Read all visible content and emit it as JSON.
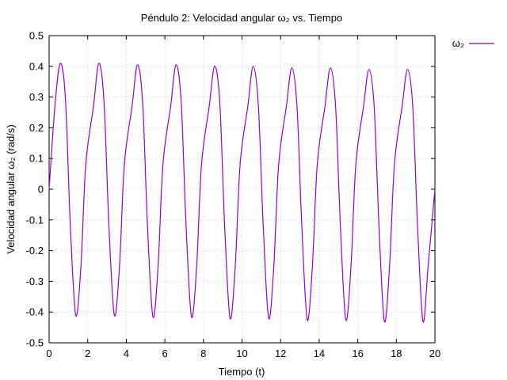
{
  "chart_data": {
    "type": "line",
    "title": "Péndulo 2: Velocidad angular ω₂ vs. Tiempo",
    "xlabel": "Tiempo (t)",
    "ylabel": "Velocidad angular ω₂ (rad/s)",
    "xlim": [
      0,
      20
    ],
    "ylim": [
      -0.5,
      0.5
    ],
    "grid": true,
    "legend_position": "top-right (outside plot)",
    "x_ticks": [
      "0",
      "2",
      "4",
      "6",
      "8",
      "10",
      "12",
      "14",
      "16",
      "18",
      "20"
    ],
    "y_ticks": [
      "-0.5",
      "-0.4",
      "-0.3",
      "-0.2",
      "-0.1",
      "0",
      "0.1",
      "0.2",
      "0.3",
      "0.4",
      "0.5"
    ],
    "series": [
      {
        "name": "ω₂",
        "color": "#9400d3",
        "x": [
          0,
          0.3,
          0.58,
          0.85,
          1.1,
          1.38,
          1.65,
          1.9,
          2.3,
          2.58,
          2.85,
          3.1,
          3.38,
          3.65,
          3.9,
          4.3,
          4.58,
          4.85,
          5.1,
          5.38,
          5.65,
          5.9,
          6.3,
          6.58,
          6.85,
          7.1,
          7.38,
          7.65,
          7.9,
          8.3,
          8.58,
          8.85,
          9.1,
          9.38,
          9.65,
          9.9,
          10.3,
          10.58,
          10.85,
          11.1,
          11.38,
          11.65,
          11.9,
          12.3,
          12.58,
          12.85,
          13.1,
          13.38,
          13.65,
          13.9,
          14.3,
          14.58,
          14.85,
          15.1,
          15.38,
          15.65,
          15.9,
          16.3,
          16.58,
          16.85,
          17.1,
          17.38,
          17.65,
          17.9,
          18.3,
          18.58,
          18.85,
          19.1,
          19.38,
          19.65,
          20.0
        ],
        "y": [
          0,
          0.27,
          0.41,
          0.29,
          -0.12,
          -0.41,
          -0.25,
          0.08,
          0.27,
          0.41,
          0.28,
          -0.12,
          -0.41,
          -0.25,
          0.08,
          0.27,
          0.405,
          0.28,
          -0.12,
          -0.415,
          -0.25,
          0.08,
          0.27,
          0.405,
          0.28,
          -0.12,
          -0.415,
          -0.25,
          0.08,
          0.27,
          0.4,
          0.28,
          -0.12,
          -0.42,
          -0.25,
          0.08,
          0.27,
          0.4,
          0.27,
          -0.12,
          -0.42,
          -0.25,
          0.08,
          0.27,
          0.395,
          0.27,
          -0.12,
          -0.425,
          -0.25,
          0.08,
          0.27,
          0.395,
          0.27,
          -0.12,
          -0.425,
          -0.25,
          0.08,
          0.27,
          0.39,
          0.27,
          -0.12,
          -0.43,
          -0.25,
          0.08,
          0.27,
          0.39,
          0.27,
          -0.12,
          -0.43,
          -0.25,
          0.0
        ]
      }
    ]
  }
}
